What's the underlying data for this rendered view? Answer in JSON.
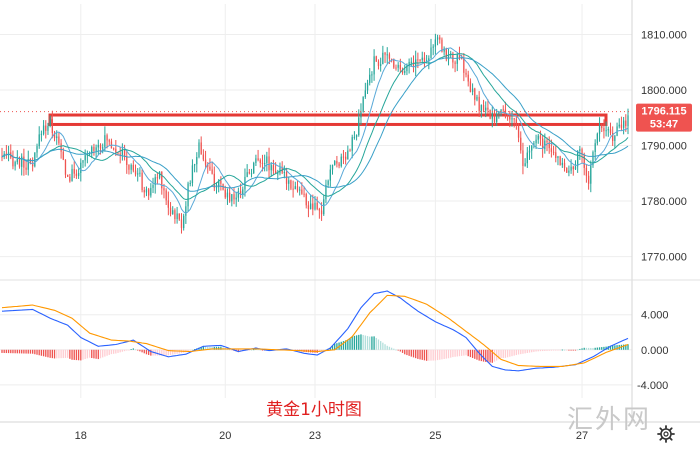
{
  "chart_data": [
    {
      "type": "candlestick",
      "title": "黄金1小时图",
      "x_tick_labels": [
        "18",
        "20",
        "23",
        "25",
        "27"
      ],
      "y_tick_labels": [
        "1810.000",
        "1800.000",
        "1790.000",
        "1780.000",
        "1770.000"
      ],
      "ylim": [
        1766.5,
        1815.5
      ],
      "current_price": "1796.115",
      "countdown": "53:47",
      "highlight_zone": {
        "low": 1793.8,
        "high": 1795.5
      },
      "colors": {
        "up": "#26a69a",
        "down": "#ef5350",
        "ma_fast": "#5aa9d8",
        "ma_slow": "#26a69a",
        "ma_mid": "#3aa0c8",
        "highlight": "#e53935",
        "price_tag": "#ef5350"
      },
      "close_path": [
        [
          0,
          1788
        ],
        [
          8,
          1787
        ],
        [
          14,
          1786
        ],
        [
          18,
          1793
        ],
        [
          22,
          1794
        ],
        [
          26,
          1790
        ],
        [
          30,
          1784
        ],
        [
          36,
          1786
        ],
        [
          42,
          1790
        ],
        [
          48,
          1791
        ],
        [
          54,
          1789
        ],
        [
          58,
          1786
        ],
        [
          62,
          1785
        ],
        [
          66,
          1781
        ],
        [
          72,
          1785
        ],
        [
          76,
          1779
        ],
        [
          82,
          1776
        ],
        [
          86,
          1784
        ],
        [
          90,
          1790
        ],
        [
          96,
          1784
        ],
        [
          102,
          1781
        ],
        [
          108,
          1781
        ],
        [
          112,
          1785
        ],
        [
          118,
          1788
        ],
        [
          124,
          1786
        ],
        [
          130,
          1784
        ],
        [
          136,
          1782
        ],
        [
          140,
          1779
        ],
        [
          146,
          1778
        ],
        [
          150,
          1786
        ],
        [
          156,
          1788
        ],
        [
          162,
          1792
        ],
        [
          166,
          1800
        ],
        [
          170,
          1805
        ],
        [
          176,
          1806
        ],
        [
          182,
          1804
        ],
        [
          188,
          1805
        ],
        [
          194,
          1806
        ],
        [
          198,
          1809
        ],
        [
          204,
          1806
        ],
        [
          210,
          1805
        ],
        [
          214,
          1800
        ],
        [
          218,
          1797
        ],
        [
          224,
          1795
        ],
        [
          228,
          1796
        ],
        [
          234,
          1795
        ],
        [
          238,
          1786
        ],
        [
          242,
          1790
        ],
        [
          246,
          1791
        ],
        [
          250,
          1789
        ],
        [
          256,
          1787
        ],
        [
          260,
          1785
        ],
        [
          264,
          1789
        ],
        [
          268,
          1784
        ],
        [
          272,
          1793
        ],
        [
          276,
          1792
        ],
        [
          280,
          1792
        ],
        [
          286,
          1795
        ]
      ]
    },
    {
      "type": "histogram",
      "title": "",
      "y_tick_labels": [
        "4.000",
        "0.000",
        "-4.000"
      ],
      "ylim": [
        -5.5,
        7.5
      ],
      "colors": {
        "pos_strong": "#26a69a",
        "pos_weak": "#b2dfdb",
        "neg_strong": "#ef5350",
        "neg_weak": "#ffcdd2",
        "macd": "#2962ff",
        "signal": "#ff9800"
      },
      "macd_path": [
        [
          0,
          4.4
        ],
        [
          14,
          4.6
        ],
        [
          22,
          3.6
        ],
        [
          30,
          2.8
        ],
        [
          36,
          1.4
        ],
        [
          44,
          0.4
        ],
        [
          52,
          0.6
        ],
        [
          60,
          1.1
        ],
        [
          68,
          -0.2
        ],
        [
          76,
          -0.8
        ],
        [
          84,
          -0.5
        ],
        [
          92,
          0.4
        ],
        [
          100,
          0.5
        ],
        [
          108,
          -0.2
        ],
        [
          116,
          0.2
        ],
        [
          122,
          -0.1
        ],
        [
          130,
          0.1
        ],
        [
          138,
          -0.4
        ],
        [
          144,
          -0.6
        ],
        [
          150,
          0.2
        ],
        [
          158,
          2.4
        ],
        [
          164,
          4.8
        ],
        [
          170,
          6.4
        ],
        [
          176,
          6.7
        ],
        [
          182,
          5.9
        ],
        [
          190,
          4.4
        ],
        [
          198,
          3.2
        ],
        [
          206,
          2.3
        ],
        [
          212,
          1.4
        ],
        [
          218,
          -0.4
        ],
        [
          224,
          -1.9
        ],
        [
          230,
          -2.3
        ],
        [
          236,
          -2.4
        ],
        [
          244,
          -2.1
        ],
        [
          252,
          -2.0
        ],
        [
          262,
          -1.7
        ],
        [
          270,
          -0.8
        ],
        [
          278,
          0.4
        ],
        [
          286,
          1.3
        ]
      ],
      "signal_path": [
        [
          0,
          4.8
        ],
        [
          14,
          5.1
        ],
        [
          24,
          4.5
        ],
        [
          32,
          3.6
        ],
        [
          40,
          1.9
        ],
        [
          50,
          1.1
        ],
        [
          58,
          1.0
        ],
        [
          66,
          0.7
        ],
        [
          76,
          -0.1
        ],
        [
          86,
          -0.2
        ],
        [
          96,
          0.1
        ],
        [
          106,
          0.1
        ],
        [
          116,
          0.1
        ],
        [
          126,
          0.0
        ],
        [
          136,
          -0.1
        ],
        [
          144,
          -0.2
        ],
        [
          152,
          0.0
        ],
        [
          160,
          1.5
        ],
        [
          168,
          4.2
        ],
        [
          176,
          6.2
        ],
        [
          184,
          6.1
        ],
        [
          194,
          5.2
        ],
        [
          204,
          3.6
        ],
        [
          212,
          2.1
        ],
        [
          220,
          0.6
        ],
        [
          228,
          -1.1
        ],
        [
          236,
          -1.8
        ],
        [
          246,
          -1.9
        ],
        [
          256,
          -1.9
        ],
        [
          266,
          -1.5
        ],
        [
          276,
          -0.3
        ],
        [
          286,
          0.6
        ]
      ]
    }
  ],
  "caption": "黄金1小时图",
  "watermark": "汇外网",
  "icons": {
    "settings": "gear-icon"
  }
}
